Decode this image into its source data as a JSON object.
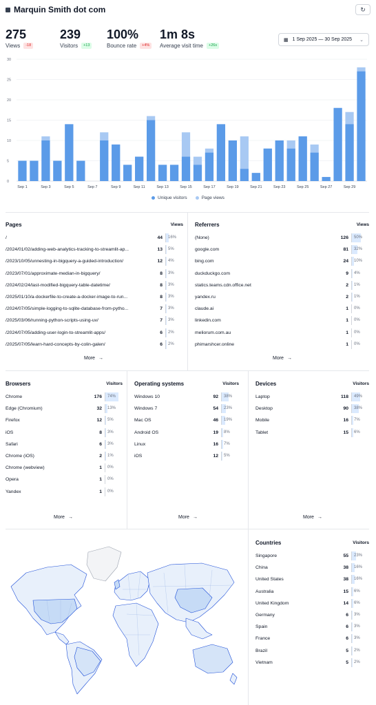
{
  "header": {
    "title": "Marquin Smith dot com",
    "refresh_icon": "refresh-icon"
  },
  "stats": [
    {
      "value": "275",
      "label": "Views",
      "delta": "-18",
      "trend": "neg"
    },
    {
      "value": "239",
      "label": "Visitors",
      "delta": "+13",
      "trend": "pos"
    },
    {
      "value": "100%",
      "label": "Bounce rate",
      "delta": "+4%",
      "trend": "neg"
    },
    {
      "value": "1m 8s",
      "label": "Average visit time",
      "delta": "+26s",
      "trend": "pos"
    }
  ],
  "date_range": {
    "label": "1 Sep 2025 — 30 Sep 2025",
    "icon": "calendar-icon"
  },
  "colors": {
    "unique_visitors": "#5b9be8",
    "page_views": "#a8c9f3",
    "grid": "#eef0f3",
    "fill": "#dbeafe"
  },
  "chart_data": {
    "type": "bar",
    "categories": [
      "Sep 1",
      "Sep 2",
      "Sep 3",
      "Sep 4",
      "Sep 5",
      "Sep 6",
      "Sep 7",
      "Sep 8",
      "Sep 9",
      "Sep 10",
      "Sep 11",
      "Sep 12",
      "Sep 13",
      "Sep 14",
      "Sep 15",
      "Sep 16",
      "Sep 17",
      "Sep 18",
      "Sep 19",
      "Sep 20",
      "Sep 21",
      "Sep 22",
      "Sep 23",
      "Sep 24",
      "Sep 25",
      "Sep 26",
      "Sep 27",
      "Sep 28",
      "Sep 29",
      "Sep 30"
    ],
    "tick_labels": [
      "Sep 1",
      "Sep 3",
      "Sep 5",
      "Sep 7",
      "Sep 9",
      "Sep 11",
      "Sep 13",
      "Sep 15",
      "Sep 17",
      "Sep 19",
      "Sep 21",
      "Sep 23",
      "Sep 25",
      "Sep 27",
      "Sep 29"
    ],
    "series": [
      {
        "name": "Unique visitors",
        "values": [
          5,
          5,
          10,
          5,
          14,
          5,
          0,
          10,
          9,
          4,
          6,
          15,
          4,
          4,
          6,
          4,
          7,
          14,
          10,
          3,
          2,
          8,
          10,
          8,
          11,
          7,
          1,
          18,
          14,
          27
        ]
      },
      {
        "name": "Page views",
        "values": [
          5,
          5,
          11,
          5,
          14,
          5,
          0,
          12,
          9,
          4,
          6,
          16,
          4,
          4,
          12,
          6,
          8,
          14,
          10,
          11,
          2,
          8,
          10,
          10,
          11,
          9,
          1,
          18,
          17,
          28
        ]
      }
    ],
    "ylim": [
      0,
      30
    ],
    "yticks": [
      0,
      5,
      10,
      15,
      20,
      25,
      30
    ],
    "stacked_overlay": true,
    "legend": "bottom-center",
    "grid": true
  },
  "panels": {
    "pages": {
      "title": "Pages",
      "metric": "Views",
      "more": "More",
      "rows": [
        {
          "name": "/",
          "count": "44",
          "pct": "16%",
          "frac": 0.16
        },
        {
          "name": "/2024/01/02/adding-web-analytics-tracking-to-streamlit-ap...",
          "count": "13",
          "pct": "5%",
          "frac": 0.05
        },
        {
          "name": "/2023/10/05/unnesting-in-bigquery-a-guided-introduction/",
          "count": "12",
          "pct": "4%",
          "frac": 0.04
        },
        {
          "name": "/2023/07/01/approximate-median-in-bigquery/",
          "count": "8",
          "pct": "3%",
          "frac": 0.03
        },
        {
          "name": "/2024/02/24/last-modified-bigquery-table-datetime/",
          "count": "8",
          "pct": "3%",
          "frac": 0.03
        },
        {
          "name": "/2025/01/10/a-dockerfile-to-create-a-docker-image-to-run...",
          "count": "8",
          "pct": "3%",
          "frac": 0.03
        },
        {
          "name": "/2024/07/05/simple-logging-to-sqlite-database-from-pytho...",
          "count": "7",
          "pct": "3%",
          "frac": 0.03
        },
        {
          "name": "/2025/03/06/running-python-scripts-using-uv/",
          "count": "7",
          "pct": "3%",
          "frac": 0.03
        },
        {
          "name": "/2024/07/05/adding-user-login-to-streamlit-apps/",
          "count": "6",
          "pct": "2%",
          "frac": 0.02
        },
        {
          "name": "/2025/07/05/learn-hard-concepts-by-colin-galen/",
          "count": "6",
          "pct": "2%",
          "frac": 0.02
        }
      ]
    },
    "referrers": {
      "title": "Referrers",
      "metric": "Views",
      "more": "More",
      "rows": [
        {
          "name": "(None)",
          "count": "126",
          "pct": "50%",
          "frac": 0.5
        },
        {
          "name": "google.com",
          "count": "81",
          "pct": "32%",
          "frac": 0.32
        },
        {
          "name": "bing.com",
          "count": "24",
          "pct": "10%",
          "frac": 0.1
        },
        {
          "name": "duckduckgo.com",
          "count": "9",
          "pct": "4%",
          "frac": 0.04
        },
        {
          "name": "statics.teams.cdn.office.net",
          "count": "2",
          "pct": "1%",
          "frac": 0.01
        },
        {
          "name": "yandex.ru",
          "count": "2",
          "pct": "1%",
          "frac": 0.01
        },
        {
          "name": "claude.ai",
          "count": "1",
          "pct": "0%",
          "frac": 0.0
        },
        {
          "name": "linkedin.com",
          "count": "1",
          "pct": "0%",
          "frac": 0.0
        },
        {
          "name": "meliorum.com.au",
          "count": "1",
          "pct": "0%",
          "frac": 0.0
        },
        {
          "name": "phimarshcer.online",
          "count": "1",
          "pct": "0%",
          "frac": 0.0
        }
      ]
    },
    "browsers": {
      "title": "Browsers",
      "metric": "Visitors",
      "more": "More",
      "rows": [
        {
          "name": "Chrome",
          "count": "176",
          "pct": "74%",
          "frac": 0.74
        },
        {
          "name": "Edge (Chromium)",
          "count": "32",
          "pct": "13%",
          "frac": 0.13
        },
        {
          "name": "Firefox",
          "count": "12",
          "pct": "5%",
          "frac": 0.05
        },
        {
          "name": "iOS",
          "count": "8",
          "pct": "3%",
          "frac": 0.03
        },
        {
          "name": "Safari",
          "count": "6",
          "pct": "3%",
          "frac": 0.03
        },
        {
          "name": "Chrome (iOS)",
          "count": "2",
          "pct": "1%",
          "frac": 0.01
        },
        {
          "name": "Chrome (webview)",
          "count": "1",
          "pct": "0%",
          "frac": 0.0
        },
        {
          "name": "Opera",
          "count": "1",
          "pct": "0%",
          "frac": 0.0
        },
        {
          "name": "Yandex",
          "count": "1",
          "pct": "0%",
          "frac": 0.0
        }
      ]
    },
    "os": {
      "title": "Operating systems",
      "metric": "Visitors",
      "more": "More",
      "rows": [
        {
          "name": "Windows 10",
          "count": "92",
          "pct": "38%",
          "frac": 0.38
        },
        {
          "name": "Windows 7",
          "count": "54",
          "pct": "23%",
          "frac": 0.23
        },
        {
          "name": "Mac OS",
          "count": "46",
          "pct": "19%",
          "frac": 0.19
        },
        {
          "name": "Android OS",
          "count": "19",
          "pct": "8%",
          "frac": 0.08
        },
        {
          "name": "Linux",
          "count": "16",
          "pct": "7%",
          "frac": 0.07
        },
        {
          "name": "iOS",
          "count": "12",
          "pct": "5%",
          "frac": 0.05
        }
      ]
    },
    "devices": {
      "title": "Devices",
      "metric": "Visitors",
      "more": "More",
      "rows": [
        {
          "name": "Laptop",
          "count": "118",
          "pct": "49%",
          "frac": 0.49
        },
        {
          "name": "Desktop",
          "count": "90",
          "pct": "38%",
          "frac": 0.38
        },
        {
          "name": "Mobile",
          "count": "16",
          "pct": "7%",
          "frac": 0.07
        },
        {
          "name": "Tablet",
          "count": "15",
          "pct": "6%",
          "frac": 0.06
        }
      ]
    },
    "countries": {
      "title": "Countries",
      "metric": "Visitors",
      "rows": [
        {
          "name": "Singapore",
          "count": "55",
          "pct": "23%",
          "frac": 0.23
        },
        {
          "name": "China",
          "count": "38",
          "pct": "16%",
          "frac": 0.16
        },
        {
          "name": "United States",
          "count": "38",
          "pct": "16%",
          "frac": 0.16
        },
        {
          "name": "Australia",
          "count": "15",
          "pct": "6%",
          "frac": 0.06
        },
        {
          "name": "United Kingdom",
          "count": "14",
          "pct": "6%",
          "frac": 0.06
        },
        {
          "name": "Germany",
          "count": "6",
          "pct": "3%",
          "frac": 0.03
        },
        {
          "name": "Spain",
          "count": "6",
          "pct": "3%",
          "frac": 0.03
        },
        {
          "name": "France",
          "count": "6",
          "pct": "3%",
          "frac": 0.03
        },
        {
          "name": "Brazil",
          "count": "5",
          "pct": "2%",
          "frac": 0.02
        },
        {
          "name": "Vietnam",
          "count": "5",
          "pct": "2%",
          "frac": 0.02
        }
      ]
    }
  }
}
